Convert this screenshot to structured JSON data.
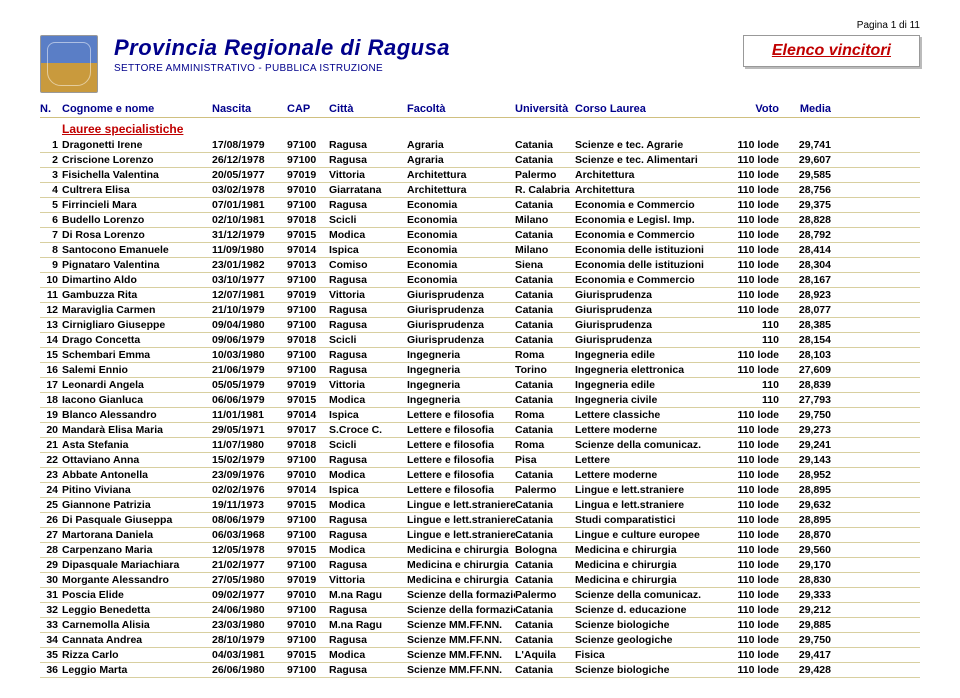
{
  "page_indicator": "Pagina 1 di 11",
  "header": {
    "title": "Provincia Regionale di Ragusa",
    "subtitle": "SETTORE AMMINISTRATIVO - PUBBLICA ISTRUZIONE",
    "box_label": "Elenco vincitori"
  },
  "columns": [
    "N.",
    "Cognome e nome",
    "Nascita",
    "CAP",
    "Città",
    "Facoltà",
    "Università",
    "Corso Laurea",
    "Voto",
    "Media"
  ],
  "section": "Lauree specialistiche",
  "rows": [
    {
      "n": "1",
      "nome": "Dragonetti Irene",
      "nasc": "17/08/1979",
      "cap": "97100",
      "citta": "Ragusa",
      "fac": "Agraria",
      "univ": "Catania",
      "corso": "Scienze e tec. Agrarie",
      "voto": "110 lode",
      "media": "29,741"
    },
    {
      "n": "2",
      "nome": "Criscione Lorenzo",
      "nasc": "26/12/1978",
      "cap": "97100",
      "citta": "Ragusa",
      "fac": "Agraria",
      "univ": "Catania",
      "corso": "Scienze e tec. Alimentari",
      "voto": "110 lode",
      "media": "29,607"
    },
    {
      "n": "3",
      "nome": "Fisichella Valentina",
      "nasc": "20/05/1977",
      "cap": "97019",
      "citta": "Vittoria",
      "fac": "Architettura",
      "univ": "Palermo",
      "corso": "Architettura",
      "voto": "110 lode",
      "media": "29,585"
    },
    {
      "n": "4",
      "nome": "Cultrera Elisa",
      "nasc": "03/02/1978",
      "cap": "97010",
      "citta": "Giarratana",
      "fac": "Architettura",
      "univ": "R. Calabria",
      "corso": "Architettura",
      "voto": "110 lode",
      "media": "28,756"
    },
    {
      "n": "5",
      "nome": "Firrincieli Mara",
      "nasc": "07/01/1981",
      "cap": "97100",
      "citta": "Ragusa",
      "fac": "Economia",
      "univ": "Catania",
      "corso": "Economia e Commercio",
      "voto": "110 lode",
      "media": "29,375"
    },
    {
      "n": "6",
      "nome": "Budello Lorenzo",
      "nasc": "02/10/1981",
      "cap": "97018",
      "citta": "Scicli",
      "fac": "Economia",
      "univ": "Milano",
      "corso": "Economia e Legisl. Imp.",
      "voto": "110 lode",
      "media": "28,828"
    },
    {
      "n": "7",
      "nome": "Di Rosa Lorenzo",
      "nasc": "31/12/1979",
      "cap": "97015",
      "citta": "Modica",
      "fac": "Economia",
      "univ": "Catania",
      "corso": "Economia e Commercio",
      "voto": "110 lode",
      "media": "28,792"
    },
    {
      "n": "8",
      "nome": "Santocono Emanuele",
      "nasc": "11/09/1980",
      "cap": "97014",
      "citta": "Ispica",
      "fac": "Economia",
      "univ": "Milano",
      "corso": "Economia delle istituzioni",
      "voto": "110 lode",
      "media": "28,414"
    },
    {
      "n": "9",
      "nome": "Pignataro Valentina",
      "nasc": "23/01/1982",
      "cap": "97013",
      "citta": "Comiso",
      "fac": "Economia",
      "univ": "Siena",
      "corso": "Economia delle istituzioni",
      "voto": "110 lode",
      "media": "28,304"
    },
    {
      "n": "10",
      "nome": "Dimartino Aldo",
      "nasc": "03/10/1977",
      "cap": "97100",
      "citta": "Ragusa",
      "fac": "Economia",
      "univ": "Catania",
      "corso": "Economia e Commercio",
      "voto": "110 lode",
      "media": "28,167"
    },
    {
      "n": "11",
      "nome": "Gambuzza Rita",
      "nasc": "12/07/1981",
      "cap": "97019",
      "citta": "Vittoria",
      "fac": "Giurisprudenza",
      "univ": "Catania",
      "corso": "Giurisprudenza",
      "voto": "110 lode",
      "media": "28,923"
    },
    {
      "n": "12",
      "nome": "Maraviglia Carmen",
      "nasc": "21/10/1979",
      "cap": "97100",
      "citta": "Ragusa",
      "fac": "Giurisprudenza",
      "univ": "Catania",
      "corso": "Giurisprudenza",
      "voto": "110 lode",
      "media": "28,077"
    },
    {
      "n": "13",
      "nome": "Cirnigliaro Giuseppe",
      "nasc": "09/04/1980",
      "cap": "97100",
      "citta": "Ragusa",
      "fac": "Giurisprudenza",
      "univ": "Catania",
      "corso": "Giurisprudenza",
      "voto": "110",
      "media": "28,385"
    },
    {
      "n": "14",
      "nome": "Drago Concetta",
      "nasc": "09/06/1979",
      "cap": "97018",
      "citta": "Scicli",
      "fac": "Giurisprudenza",
      "univ": "Catania",
      "corso": "Giurisprudenza",
      "voto": "110",
      "media": "28,154"
    },
    {
      "n": "15",
      "nome": "Schembari Emma",
      "nasc": "10/03/1980",
      "cap": "97100",
      "citta": "Ragusa",
      "fac": "Ingegneria",
      "univ": "Roma",
      "corso": "Ingegneria edile",
      "voto": "110 lode",
      "media": "28,103"
    },
    {
      "n": "16",
      "nome": "Salemi Ennio",
      "nasc": "21/06/1979",
      "cap": "97100",
      "citta": "Ragusa",
      "fac": "Ingegneria",
      "univ": "Torino",
      "corso": "Ingegneria elettronica",
      "voto": "110 lode",
      "media": "27,609"
    },
    {
      "n": "17",
      "nome": "Leonardi Angela",
      "nasc": "05/05/1979",
      "cap": "97019",
      "citta": "Vittoria",
      "fac": "Ingegneria",
      "univ": "Catania",
      "corso": "Ingegneria edile",
      "voto": "110",
      "media": "28,839"
    },
    {
      "n": "18",
      "nome": "Iacono Gianluca",
      "nasc": "06/06/1979",
      "cap": "97015",
      "citta": "Modica",
      "fac": "Ingegneria",
      "univ": "Catania",
      "corso": "Ingegneria civile",
      "voto": "110",
      "media": "27,793"
    },
    {
      "n": "19",
      "nome": "Blanco Alessandro",
      "nasc": "11/01/1981",
      "cap": "97014",
      "citta": "Ispica",
      "fac": "Lettere e filosofia",
      "univ": "Roma",
      "corso": "Lettere classiche",
      "voto": "110 lode",
      "media": "29,750"
    },
    {
      "n": "20",
      "nome": "Mandarà Elisa Maria",
      "nasc": "29/05/1971",
      "cap": "97017",
      "citta": "S.Croce C.",
      "fac": "Lettere e filosofia",
      "univ": "Catania",
      "corso": "Lettere moderne",
      "voto": "110 lode",
      "media": "29,273"
    },
    {
      "n": "21",
      "nome": "Asta Stefania",
      "nasc": "11/07/1980",
      "cap": "97018",
      "citta": "Scicli",
      "fac": "Lettere e filosofia",
      "univ": "Roma",
      "corso": "Scienze della comunicaz.",
      "voto": "110 lode",
      "media": "29,241"
    },
    {
      "n": "22",
      "nome": "Ottaviano Anna",
      "nasc": "15/02/1979",
      "cap": "97100",
      "citta": "Ragusa",
      "fac": "Lettere e filosofia",
      "univ": "Pisa",
      "corso": "Lettere",
      "voto": "110 lode",
      "media": "29,143"
    },
    {
      "n": "23",
      "nome": "Abbate Antonella",
      "nasc": "23/09/1976",
      "cap": "97010",
      "citta": "Modica",
      "fac": "Lettere e filosofia",
      "univ": "Catania",
      "corso": "Lettere moderne",
      "voto": "110 lode",
      "media": "28,952"
    },
    {
      "n": "24",
      "nome": "Pitino Viviana",
      "nasc": "02/02/1976",
      "cap": "97014",
      "citta": "Ispica",
      "fac": "Lettere e filosofia",
      "univ": "Palermo",
      "corso": "Lingue e lett.straniere",
      "voto": "110 lode",
      "media": "28,895"
    },
    {
      "n": "25",
      "nome": "Giannone Patrizia",
      "nasc": "19/11/1973",
      "cap": "97015",
      "citta": "Modica",
      "fac": "Lingue e lett.straniere",
      "univ": "Catania",
      "corso": "Lingua e lett.straniere",
      "voto": "110 lode",
      "media": "29,632"
    },
    {
      "n": "26",
      "nome": "Di Pasquale Giuseppa",
      "nasc": "08/06/1979",
      "cap": "97100",
      "citta": "Ragusa",
      "fac": "Lingue e lett.straniere",
      "univ": "Catania",
      "corso": "Studi comparatistici",
      "voto": "110 lode",
      "media": "28,895"
    },
    {
      "n": "27",
      "nome": "Martorana Daniela",
      "nasc": "06/03/1968",
      "cap": "97100",
      "citta": "Ragusa",
      "fac": "Lingue e lett.straniere",
      "univ": "Catania",
      "corso": "Lingue e culture europee",
      "voto": "110 lode",
      "media": "28,870"
    },
    {
      "n": "28",
      "nome": "Carpenzano Maria",
      "nasc": "12/05/1978",
      "cap": "97015",
      "citta": "Modica",
      "fac": "Medicina e chirurgia",
      "univ": "Bologna",
      "corso": "Medicina e chirurgia",
      "voto": "110 lode",
      "media": "29,560"
    },
    {
      "n": "29",
      "nome": "Dipasquale Mariachiara",
      "nasc": "21/02/1977",
      "cap": "97100",
      "citta": "Ragusa",
      "fac": "Medicina e chirurgia",
      "univ": "Catania",
      "corso": "Medicina e chirurgia",
      "voto": "110 lode",
      "media": "29,170"
    },
    {
      "n": "30",
      "nome": "Morgante Alessandro",
      "nasc": "27/05/1980",
      "cap": "97019",
      "citta": "Vittoria",
      "fac": "Medicina e chirurgia",
      "univ": "Catania",
      "corso": "Medicina e chirurgia",
      "voto": "110 lode",
      "media": "28,830"
    },
    {
      "n": "31",
      "nome": "Poscia Elide",
      "nasc": "09/02/1977",
      "cap": "97010",
      "citta": "M.na Ragu",
      "fac": "Scienze della formazion",
      "univ": "Palermo",
      "corso": "Scienze della comunicaz.",
      "voto": "110 lode",
      "media": "29,333"
    },
    {
      "n": "32",
      "nome": "Leggio Benedetta",
      "nasc": "24/06/1980",
      "cap": "97100",
      "citta": "Ragusa",
      "fac": "Scienze della formazion",
      "univ": "Catania",
      "corso": "Scienze d. educazione",
      "voto": "110 lode",
      "media": "29,212"
    },
    {
      "n": "33",
      "nome": "Carnemolla Alisia",
      "nasc": "23/03/1980",
      "cap": "97010",
      "citta": "M.na Ragu",
      "fac": "Scienze MM.FF.NN.",
      "univ": "Catania",
      "corso": "Scienze biologiche",
      "voto": "110 lode",
      "media": "29,885"
    },
    {
      "n": "34",
      "nome": "Cannata Andrea",
      "nasc": "28/10/1979",
      "cap": "97100",
      "citta": "Ragusa",
      "fac": "Scienze MM.FF.NN.",
      "univ": "Catania",
      "corso": "Scienze geologiche",
      "voto": "110 lode",
      "media": "29,750"
    },
    {
      "n": "35",
      "nome": "Rizza Carlo",
      "nasc": "04/03/1981",
      "cap": "97015",
      "citta": "Modica",
      "fac": "Scienze MM.FF.NN.",
      "univ": "L'Aquila",
      "corso": "Fisica",
      "voto": "110 lode",
      "media": "29,417"
    },
    {
      "n": "36",
      "nome": "Leggio Marta",
      "nasc": "26/06/1980",
      "cap": "97100",
      "citta": "Ragusa",
      "fac": "Scienze MM.FF.NN.",
      "univ": "Catania",
      "corso": "Scienze biologiche",
      "voto": "110 lode",
      "media": "29,428"
    }
  ]
}
